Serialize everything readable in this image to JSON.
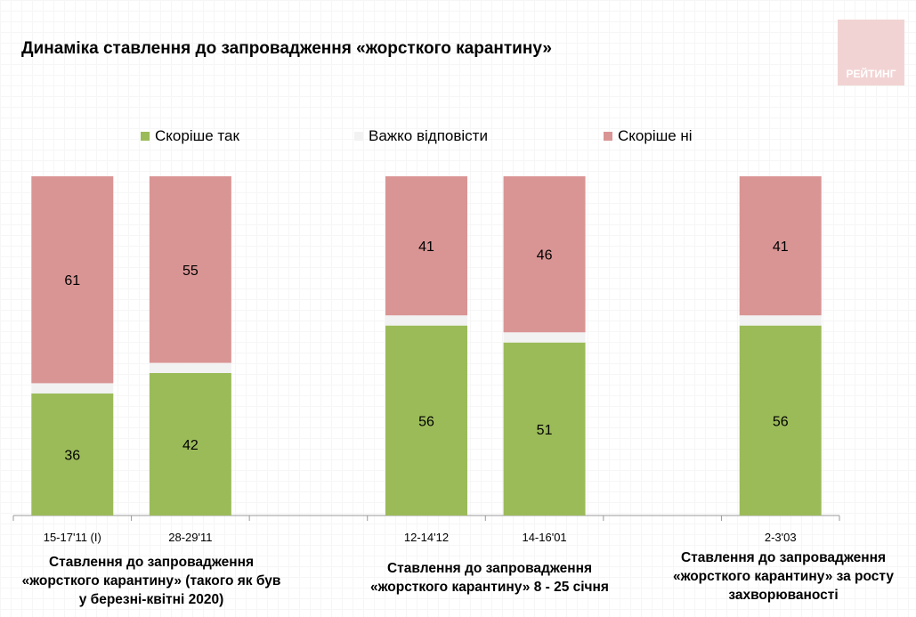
{
  "chart_data": {
    "type": "bar",
    "stacked": true,
    "title": "Динаміка ставлення до запровадження «жорсткого карантину»",
    "categories": [
      "15-17'11 (I)",
      "28-29'11",
      "",
      "12-14'12",
      "14-16'01",
      "",
      "2-3'03"
    ],
    "series": [
      {
        "name": "Скоріше так",
        "color": "#9bbb59",
        "values": [
          36,
          42,
          null,
          56,
          51,
          null,
          56
        ]
      },
      {
        "name": "Важко відповісти",
        "color": "#f2f2f2",
        "values": [
          3,
          3,
          null,
          3,
          3,
          null,
          3
        ]
      },
      {
        "name": "Скоріше ні",
        "color": "#d99594",
        "values": [
          61,
          55,
          null,
          41,
          46,
          null,
          41
        ]
      }
    ],
    "ylim": [
      0,
      100
    ],
    "legend": "top",
    "group_labels": [
      "Ставлення до запровадження «жорсткого карантину» (такого як був у березні-квітні 2020)",
      "Ставлення до запровадження «жорсткого карантину» 8 - 25 січня",
      "Ставлення до запровадження «жорсткого карантину» за росту захворюваності"
    ]
  },
  "logo": "РЕЙТИНГ"
}
